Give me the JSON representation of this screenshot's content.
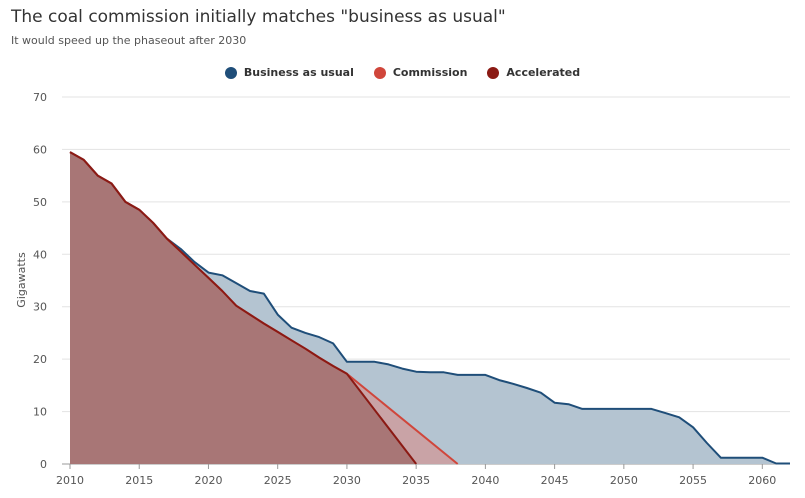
{
  "chart_data": {
    "type": "area",
    "title": "The coal commission initially matches \"business as usual\"",
    "subtitle": "It would speed up the phaseout after 2030",
    "xlabel": "",
    "ylabel": "Gigawatts",
    "xlim": [
      2010,
      2062
    ],
    "ylim": [
      0,
      70
    ],
    "x_ticks": [
      2010,
      2015,
      2020,
      2025,
      2030,
      2035,
      2040,
      2045,
      2050,
      2055,
      2060
    ],
    "y_ticks": [
      0,
      10,
      20,
      30,
      40,
      50,
      60,
      70
    ],
    "grid": true,
    "legend_position": "top-center",
    "series": [
      {
        "name": "Business as usual",
        "color": "#1f4e79",
        "fill": "#b4c4d1",
        "points": [
          [
            2010,
            59.5
          ],
          [
            2011,
            58
          ],
          [
            2012,
            55
          ],
          [
            2013,
            53.5
          ],
          [
            2014,
            50
          ],
          [
            2015,
            48.5
          ],
          [
            2016,
            46
          ],
          [
            2017,
            43
          ],
          [
            2018,
            41
          ],
          [
            2019,
            38.5
          ],
          [
            2020,
            36.5
          ],
          [
            2021,
            36
          ],
          [
            2022,
            34.5
          ],
          [
            2023,
            33
          ],
          [
            2024,
            32.5
          ],
          [
            2025,
            28.5
          ],
          [
            2026,
            26
          ],
          [
            2027,
            25
          ],
          [
            2028,
            24.2
          ],
          [
            2029,
            23
          ],
          [
            2030,
            19.5
          ],
          [
            2031,
            19.5
          ],
          [
            2032,
            19.5
          ],
          [
            2033,
            19
          ],
          [
            2034,
            18.2
          ],
          [
            2035,
            17.6
          ],
          [
            2036,
            17.5
          ],
          [
            2037,
            17.5
          ],
          [
            2038,
            17
          ],
          [
            2039,
            17
          ],
          [
            2040,
            17
          ],
          [
            2041,
            16
          ],
          [
            2042,
            15.3
          ],
          [
            2043,
            14.5
          ],
          [
            2044,
            13.6
          ],
          [
            2045,
            11.7
          ],
          [
            2046,
            11.4
          ],
          [
            2047,
            10.5
          ],
          [
            2048,
            10.5
          ],
          [
            2049,
            10.5
          ],
          [
            2050,
            10.5
          ],
          [
            2051,
            10.5
          ],
          [
            2052,
            10.5
          ],
          [
            2053,
            9.7
          ],
          [
            2054,
            8.9
          ],
          [
            2055,
            7
          ],
          [
            2056,
            4
          ],
          [
            2057,
            1.2
          ],
          [
            2058,
            1.2
          ],
          [
            2059,
            1.2
          ],
          [
            2060,
            1.2
          ],
          [
            2061,
            0.1
          ],
          [
            2062,
            0.1
          ]
        ]
      },
      {
        "name": "Commission",
        "color": "#d0463b",
        "fill": "#c9a3a6",
        "points": [
          [
            2010,
            59.5
          ],
          [
            2011,
            58
          ],
          [
            2012,
            55
          ],
          [
            2013,
            53.5
          ],
          [
            2014,
            50
          ],
          [
            2015,
            48.5
          ],
          [
            2016,
            46
          ],
          [
            2017,
            43
          ],
          [
            2018,
            40.5
          ],
          [
            2019,
            38
          ],
          [
            2020,
            35.5
          ],
          [
            2021,
            33
          ],
          [
            2022,
            30.2
          ],
          [
            2023,
            28.5
          ],
          [
            2024,
            26.8
          ],
          [
            2025,
            25.2
          ],
          [
            2026,
            23.6
          ],
          [
            2027,
            22
          ],
          [
            2028,
            20.3
          ],
          [
            2029,
            18.7
          ],
          [
            2030,
            17.2
          ],
          [
            2038,
            0
          ]
        ]
      },
      {
        "name": "Accelerated",
        "color": "#8b1a14",
        "fill": "#a87676",
        "points": [
          [
            2010,
            59.5
          ],
          [
            2011,
            58
          ],
          [
            2012,
            55
          ],
          [
            2013,
            53.5
          ],
          [
            2014,
            50
          ],
          [
            2015,
            48.5
          ],
          [
            2016,
            46
          ],
          [
            2017,
            43
          ],
          [
            2018,
            40.5
          ],
          [
            2019,
            38
          ],
          [
            2020,
            35.5
          ],
          [
            2021,
            33
          ],
          [
            2022,
            30.2
          ],
          [
            2023,
            28.5
          ],
          [
            2024,
            26.8
          ],
          [
            2025,
            25.2
          ],
          [
            2026,
            23.6
          ],
          [
            2027,
            22
          ],
          [
            2028,
            20.3
          ],
          [
            2029,
            18.7
          ],
          [
            2030,
            17.2
          ],
          [
            2035,
            0
          ]
        ]
      }
    ]
  }
}
